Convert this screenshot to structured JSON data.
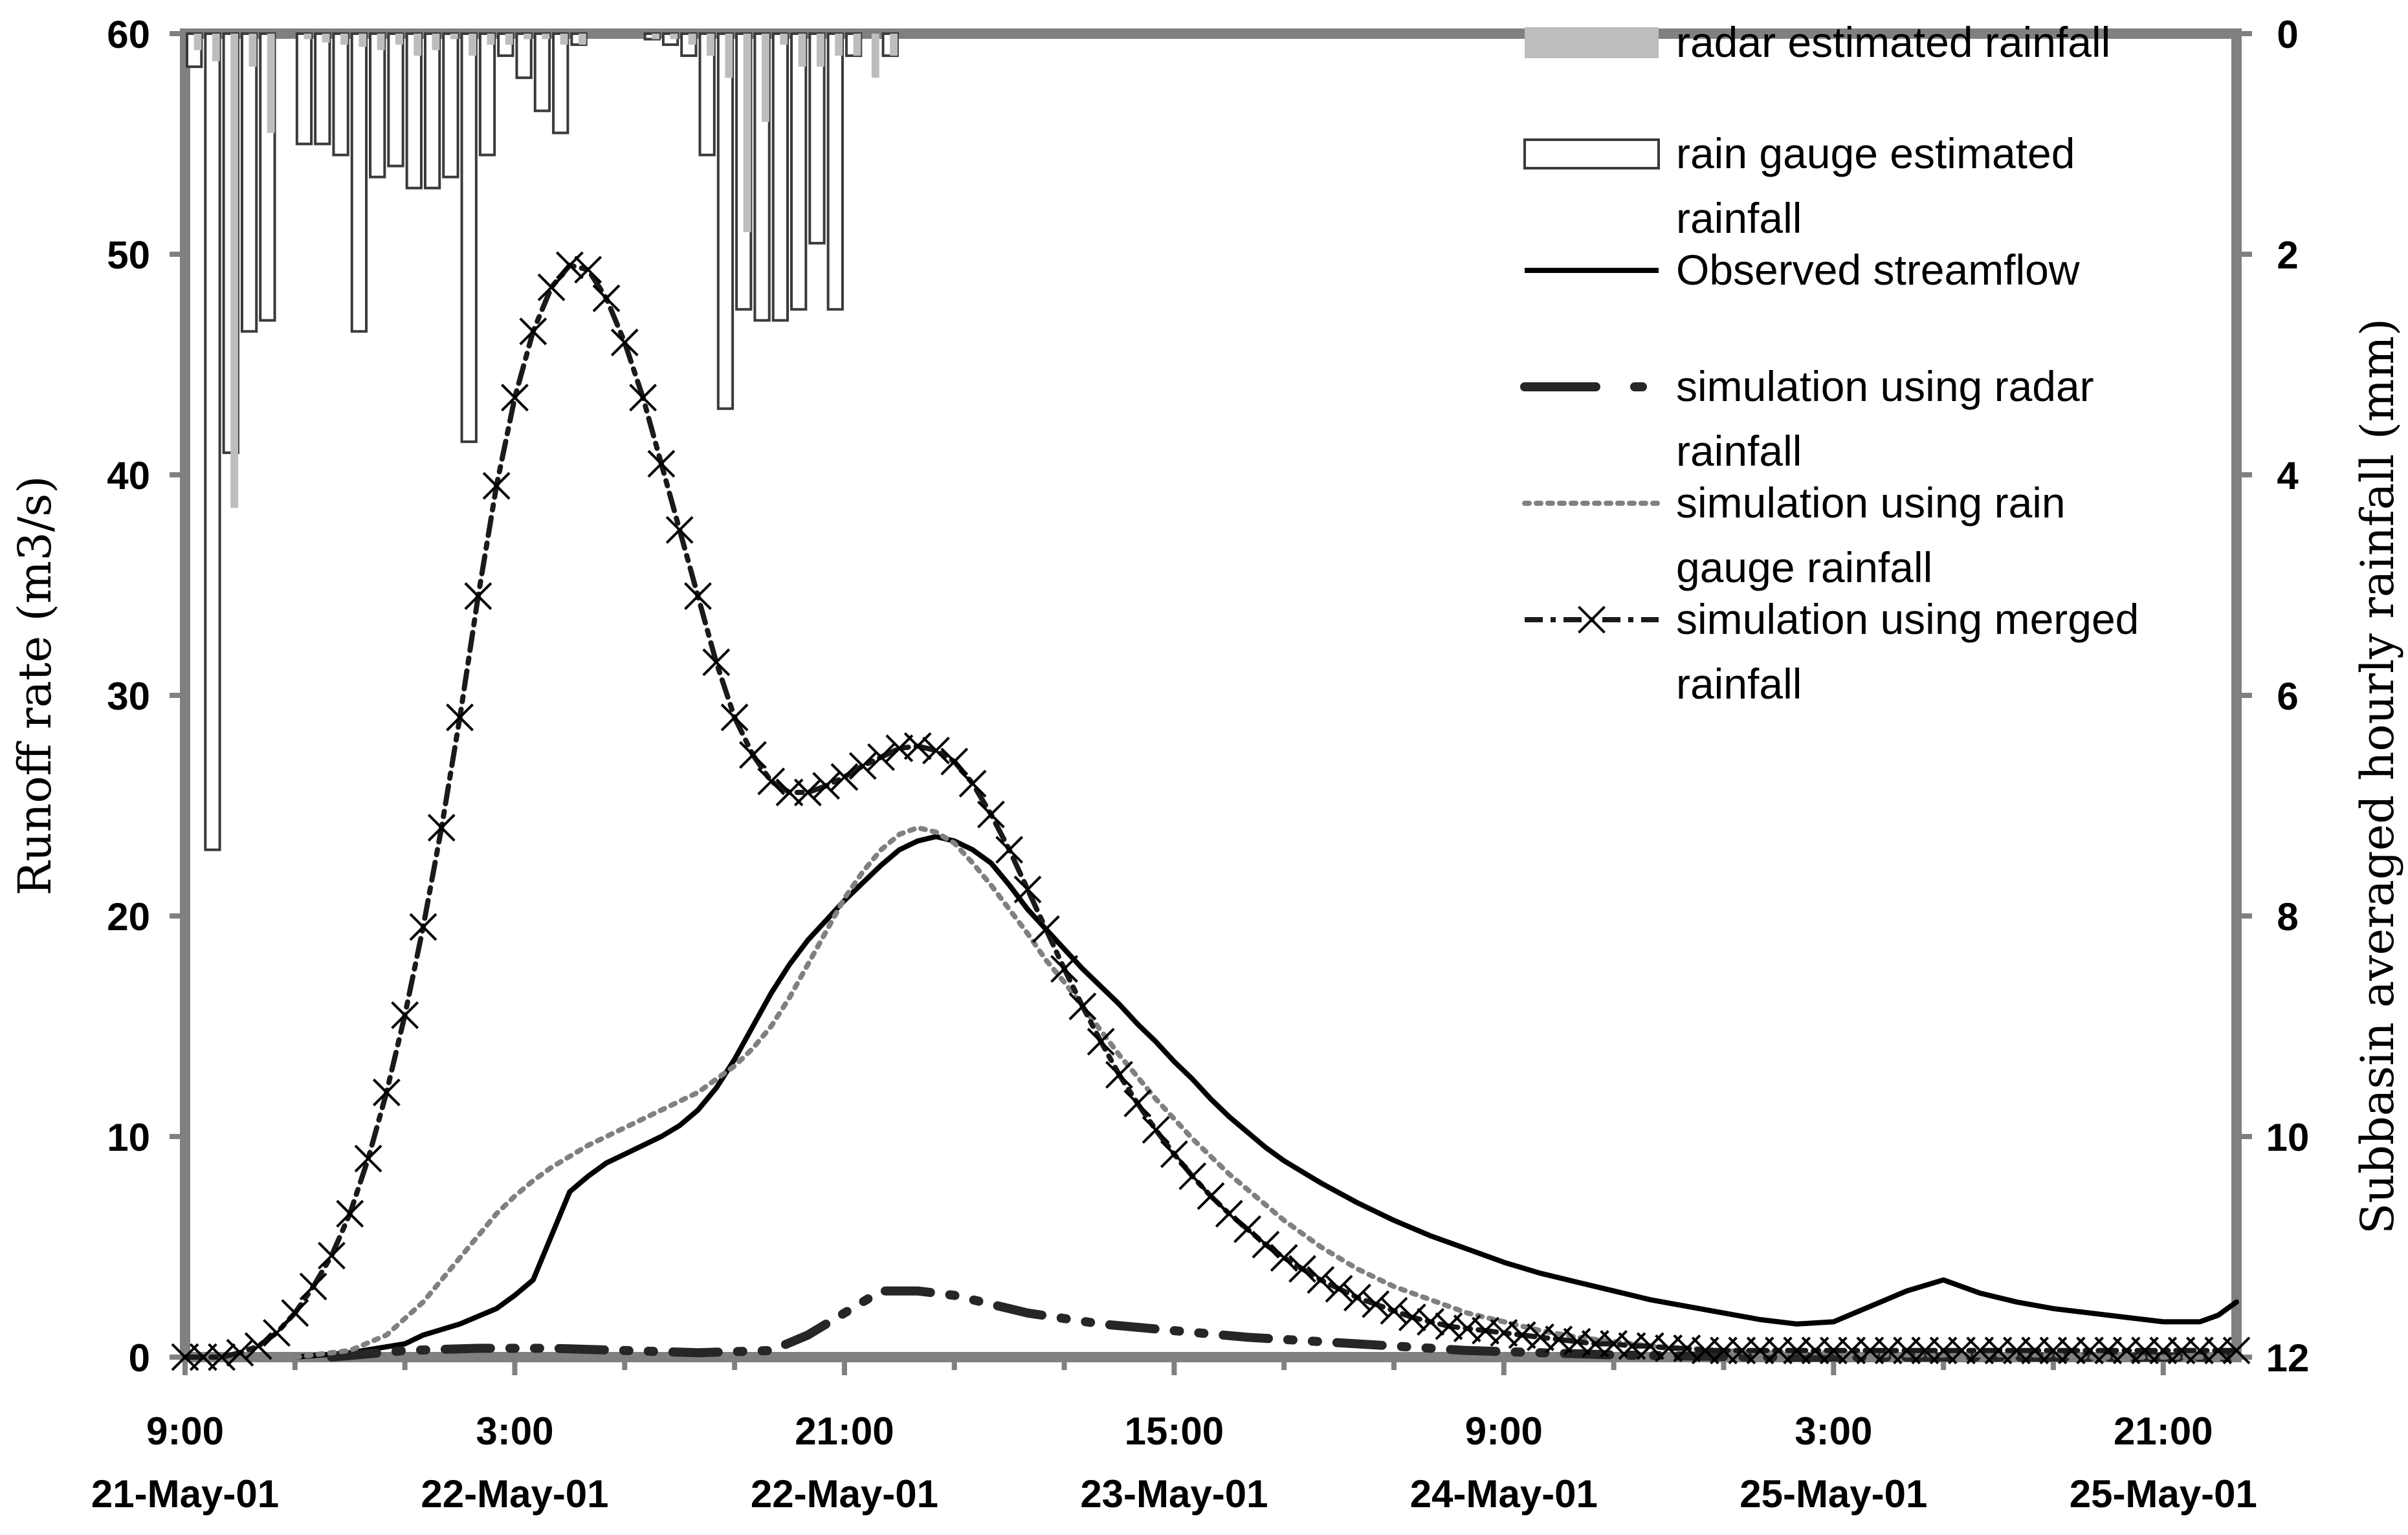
{
  "chart_data": {
    "type": "combo bar + line",
    "title": "",
    "x_ticks": [
      {
        "time": "9:00",
        "date": "21-May-01"
      },
      {
        "time": "3:00",
        "date": "22-May-01"
      },
      {
        "time": "21:00",
        "date": "22-May-01"
      },
      {
        "time": "15:00",
        "date": "23-May-01"
      },
      {
        "time": "9:00",
        "date": "24-May-01"
      },
      {
        "time": "3:00",
        "date": "25-May-01"
      },
      {
        "time": "21:00",
        "date": "25-May-01"
      }
    ],
    "x_unit": "hours since 21-May-01 9:00",
    "x_range": [
      0,
      112
    ],
    "y_left": {
      "label": "Runoff rate (m3/s)",
      "range": [
        0,
        60
      ],
      "ticks": [
        0,
        10,
        20,
        30,
        40,
        50,
        60
      ]
    },
    "y_right": {
      "label": "Subbasin averaged hourly rainfall (mm)",
      "range": [
        0,
        12
      ],
      "reversed": true,
      "ticks": [
        0,
        2,
        4,
        6,
        8,
        10,
        12
      ]
    },
    "legend": [
      {
        "label_lines": [
          "radar estimated rainfall"
        ]
      },
      {
        "label_lines": [
          "rain gauge estimated",
          "rainfall"
        ]
      },
      {
        "label_lines": [
          "Observed streamflow"
        ]
      },
      {
        "label_lines": [
          "simulation using radar",
          "rainfall"
        ]
      },
      {
        "label_lines": [
          "simulation using rain",
          "gauge rainfall"
        ]
      },
      {
        "label_lines": [
          "simulation using merged",
          "rainfall"
        ]
      }
    ],
    "rainfall_mm": {
      "hours": [
        0,
        1,
        2,
        3,
        4,
        5,
        6,
        7,
        8,
        9,
        10,
        11,
        12,
        13,
        14,
        15,
        16,
        17,
        18,
        19,
        20,
        21,
        22,
        23,
        24,
        25,
        26,
        27,
        28,
        29,
        30,
        31,
        32,
        33,
        34,
        35,
        36,
        37,
        38
      ],
      "radar": [
        0.15,
        0.25,
        4.3,
        0.3,
        0.9,
        0,
        0.05,
        0.08,
        0.1,
        0.12,
        0.15,
        0.1,
        0.2,
        0.15,
        0.05,
        0.2,
        0.1,
        0.1,
        0.05,
        0.05,
        0.1,
        0.1,
        0,
        0,
        0,
        0.05,
        0.05,
        0.1,
        0.2,
        0.4,
        1.8,
        0.8,
        0.1,
        0.3,
        0.3,
        0.2,
        0.2,
        0.4,
        0.2
      ],
      "gauge": [
        0.3,
        7.4,
        3.8,
        2.7,
        2.6,
        0,
        1.0,
        1.0,
        1.1,
        2.7,
        1.3,
        1.2,
        1.4,
        1.4,
        1.3,
        3.7,
        1.1,
        0.2,
        0.4,
        0.7,
        0.9,
        0.1,
        0,
        0,
        0,
        0.05,
        0.1,
        0.2,
        1.1,
        3.4,
        2.5,
        2.6,
        2.6,
        2.5,
        1.9,
        2.5,
        0.2,
        0,
        0.2
      ]
    },
    "series": [
      {
        "name": "Observed streamflow",
        "x": [
          6,
          9,
          12,
          13,
          15,
          17,
          18,
          19,
          20,
          21,
          22,
          23,
          24,
          25,
          26,
          27,
          28,
          29,
          30,
          31,
          32,
          33,
          34,
          35,
          36,
          37,
          38,
          39,
          40,
          41,
          42,
          43,
          44,
          45,
          46,
          47,
          48,
          49,
          50,
          51,
          52,
          53,
          54,
          55,
          56,
          57,
          58,
          59,
          60,
          62,
          64,
          66,
          68,
          70,
          72,
          74,
          76,
          78,
          80,
          82,
          84,
          86,
          88,
          90,
          92,
          94,
          96,
          98,
          100,
          102,
          104,
          106,
          107,
          108,
          109,
          110,
          111,
          112
        ],
        "y": [
          0,
          0.2,
          0.6,
          1.0,
          1.5,
          2.2,
          2.8,
          3.5,
          5.5,
          7.5,
          8.2,
          8.8,
          9.2,
          9.6,
          10.0,
          10.5,
          11.2,
          12.2,
          13.5,
          15.0,
          16.5,
          17.8,
          18.9,
          19.8,
          20.7,
          21.5,
          22.3,
          23.0,
          23.4,
          23.6,
          23.4,
          23.0,
          22.4,
          21.4,
          20.3,
          19.4,
          18.5,
          17.6,
          16.8,
          16.0,
          15.1,
          14.3,
          13.4,
          12.6,
          11.7,
          10.9,
          10.2,
          9.5,
          8.9,
          7.9,
          7.0,
          6.2,
          5.5,
          4.9,
          4.3,
          3.8,
          3.4,
          3.0,
          2.6,
          2.3,
          2.0,
          1.7,
          1.5,
          1.6,
          2.3,
          3.0,
          3.5,
          2.9,
          2.5,
          2.2,
          2.0,
          1.8,
          1.7,
          1.6,
          1.6,
          1.6,
          1.9,
          2.5
        ]
      },
      {
        "name": "simulation using radar rainfall",
        "x": [
          8,
          12,
          16,
          20,
          24,
          28,
          32,
          34,
          36,
          38,
          40,
          42,
          44,
          46,
          50,
          54,
          58,
          62,
          66,
          70,
          74,
          78,
          82,
          86,
          90,
          94,
          98,
          100,
          104,
          108,
          112
        ],
        "y": [
          0,
          0.3,
          0.4,
          0.4,
          0.3,
          0.2,
          0.3,
          1.0,
          2.0,
          3.0,
          3.0,
          2.8,
          2.4,
          2.0,
          1.5,
          1.2,
          0.9,
          0.7,
          0.5,
          0.3,
          0.2,
          0.1,
          0.05,
          0,
          0,
          0,
          0,
          0,
          0,
          0,
          0
        ]
      },
      {
        "name": "simulation using rain gauge rainfall",
        "x": [
          6,
          9,
          11,
          13,
          15,
          16,
          17,
          18,
          19,
          20,
          21,
          22,
          23,
          24,
          25,
          26,
          27,
          28,
          29,
          30,
          31,
          32,
          33,
          34,
          35,
          36,
          37,
          38,
          39,
          40,
          41,
          42,
          43,
          44,
          45,
          46,
          47,
          48,
          49,
          50,
          51,
          52,
          53,
          54,
          55,
          56,
          57,
          58,
          59,
          60,
          62,
          64,
          66,
          68,
          70,
          72,
          74,
          76,
          78,
          80,
          82,
          84,
          86,
          88,
          90,
          92,
          94,
          96,
          98,
          100,
          102,
          104,
          106,
          108,
          110,
          112
        ],
        "y": [
          0,
          0.3,
          1.0,
          2.5,
          4.5,
          5.5,
          6.5,
          7.3,
          8.0,
          8.6,
          9.1,
          9.6,
          10.0,
          10.4,
          10.8,
          11.2,
          11.6,
          12.0,
          12.6,
          13.2,
          14.0,
          15.0,
          16.3,
          17.8,
          19.3,
          20.8,
          22.0,
          23.0,
          23.7,
          24.0,
          23.8,
          23.3,
          22.4,
          21.4,
          20.3,
          19.2,
          18.0,
          17.0,
          15.9,
          14.8,
          13.7,
          12.7,
          11.7,
          10.8,
          9.9,
          9.1,
          8.3,
          7.6,
          6.9,
          6.2,
          5.0,
          4.0,
          3.2,
          2.6,
          2.0,
          1.6,
          1.2,
          0.9,
          0.7,
          0.5,
          0.4,
          0.3,
          0.2,
          0.2,
          0.2,
          0.1,
          0.1,
          0.1,
          0.1,
          0.1,
          0.1,
          0,
          0,
          0,
          0,
          0
        ]
      },
      {
        "name": "simulation using merged rainfall",
        "x": [
          0,
          1,
          2,
          3,
          4,
          5,
          6,
          7,
          8,
          9,
          10,
          11,
          12,
          13,
          14,
          15,
          16,
          17,
          18,
          19,
          20,
          21,
          22,
          23,
          24,
          25,
          26,
          27,
          28,
          29,
          30,
          31,
          32,
          33,
          34,
          35,
          36,
          37,
          38,
          39,
          40,
          41,
          42,
          43,
          44,
          45,
          46,
          47,
          48,
          49,
          50,
          51,
          52,
          53,
          54,
          55,
          56,
          57,
          58,
          59,
          60,
          61,
          62,
          63,
          64,
          65,
          66,
          67,
          68,
          69,
          70,
          71,
          72,
          73,
          74,
          75,
          76,
          77,
          78,
          79,
          80,
          81,
          82,
          83,
          84,
          85,
          86,
          87,
          88,
          89,
          90,
          91,
          92,
          93,
          94,
          95,
          96,
          97,
          98,
          99,
          100,
          101,
          102,
          103,
          104,
          105,
          106,
          107,
          108,
          109,
          110,
          111,
          112
        ],
        "y": [
          0,
          0,
          0,
          0.2,
          0.5,
          1.1,
          2.0,
          3.2,
          4.6,
          6.5,
          9.0,
          12.0,
          15.5,
          19.5,
          24.0,
          29.0,
          34.5,
          39.5,
          43.5,
          46.5,
          48.5,
          49.5,
          49.3,
          48.0,
          46.0,
          43.5,
          40.5,
          37.5,
          34.5,
          31.5,
          29.0,
          27.3,
          26.1,
          25.6,
          25.6,
          25.9,
          26.3,
          26.8,
          27.2,
          27.6,
          27.7,
          27.5,
          27.0,
          26.0,
          24.6,
          23.0,
          21.2,
          19.4,
          17.6,
          15.9,
          14.3,
          12.8,
          11.5,
          10.3,
          9.2,
          8.2,
          7.3,
          6.5,
          5.8,
          5.1,
          4.5,
          4.0,
          3.5,
          3.1,
          2.7,
          2.4,
          2.1,
          1.8,
          1.6,
          1.4,
          1.3,
          1.2,
          1.1,
          1.0,
          0.9,
          0.8,
          0.7,
          0.6,
          0.6,
          0.5,
          0.5,
          0.4,
          0.4,
          0.3,
          0.3,
          0.3,
          0.3,
          0.3,
          0.3,
          0.3,
          0.3,
          0.3,
          0.3,
          0.3,
          0.3,
          0.3,
          0.3,
          0.3,
          0.3,
          0.3,
          0.3,
          0.3,
          0.3,
          0.3,
          0.3,
          0.3,
          0.3,
          0.3,
          0.3,
          0.3,
          0.3,
          0.3,
          0.3
        ]
      }
    ]
  }
}
